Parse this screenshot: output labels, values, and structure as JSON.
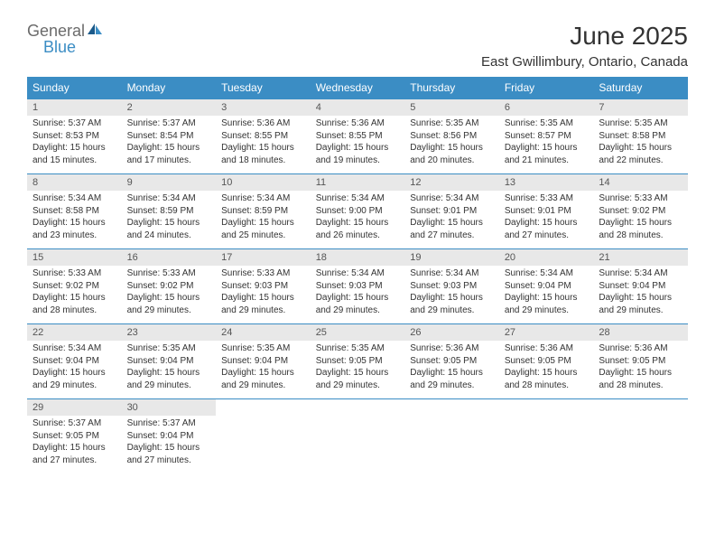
{
  "logo": {
    "text_general": "General",
    "text_blue": "Blue"
  },
  "header": {
    "month_title": "June 2025",
    "location": "East Gwillimbury, Ontario, Canada"
  },
  "colors": {
    "header_bg": "#3b8dc4",
    "header_text": "#ffffff",
    "daynum_bg": "#e8e8e8",
    "body_text": "#333333"
  },
  "day_labels": [
    "Sunday",
    "Monday",
    "Tuesday",
    "Wednesday",
    "Thursday",
    "Friday",
    "Saturday"
  ],
  "weeks": [
    [
      {
        "num": "1",
        "sunrise": "Sunrise: 5:37 AM",
        "sunset": "Sunset: 8:53 PM",
        "daylight": "Daylight: 15 hours and 15 minutes."
      },
      {
        "num": "2",
        "sunrise": "Sunrise: 5:37 AM",
        "sunset": "Sunset: 8:54 PM",
        "daylight": "Daylight: 15 hours and 17 minutes."
      },
      {
        "num": "3",
        "sunrise": "Sunrise: 5:36 AM",
        "sunset": "Sunset: 8:55 PM",
        "daylight": "Daylight: 15 hours and 18 minutes."
      },
      {
        "num": "4",
        "sunrise": "Sunrise: 5:36 AM",
        "sunset": "Sunset: 8:55 PM",
        "daylight": "Daylight: 15 hours and 19 minutes."
      },
      {
        "num": "5",
        "sunrise": "Sunrise: 5:35 AM",
        "sunset": "Sunset: 8:56 PM",
        "daylight": "Daylight: 15 hours and 20 minutes."
      },
      {
        "num": "6",
        "sunrise": "Sunrise: 5:35 AM",
        "sunset": "Sunset: 8:57 PM",
        "daylight": "Daylight: 15 hours and 21 minutes."
      },
      {
        "num": "7",
        "sunrise": "Sunrise: 5:35 AM",
        "sunset": "Sunset: 8:58 PM",
        "daylight": "Daylight: 15 hours and 22 minutes."
      }
    ],
    [
      {
        "num": "8",
        "sunrise": "Sunrise: 5:34 AM",
        "sunset": "Sunset: 8:58 PM",
        "daylight": "Daylight: 15 hours and 23 minutes."
      },
      {
        "num": "9",
        "sunrise": "Sunrise: 5:34 AM",
        "sunset": "Sunset: 8:59 PM",
        "daylight": "Daylight: 15 hours and 24 minutes."
      },
      {
        "num": "10",
        "sunrise": "Sunrise: 5:34 AM",
        "sunset": "Sunset: 8:59 PM",
        "daylight": "Daylight: 15 hours and 25 minutes."
      },
      {
        "num": "11",
        "sunrise": "Sunrise: 5:34 AM",
        "sunset": "Sunset: 9:00 PM",
        "daylight": "Daylight: 15 hours and 26 minutes."
      },
      {
        "num": "12",
        "sunrise": "Sunrise: 5:34 AM",
        "sunset": "Sunset: 9:01 PM",
        "daylight": "Daylight: 15 hours and 27 minutes."
      },
      {
        "num": "13",
        "sunrise": "Sunrise: 5:33 AM",
        "sunset": "Sunset: 9:01 PM",
        "daylight": "Daylight: 15 hours and 27 minutes."
      },
      {
        "num": "14",
        "sunrise": "Sunrise: 5:33 AM",
        "sunset": "Sunset: 9:02 PM",
        "daylight": "Daylight: 15 hours and 28 minutes."
      }
    ],
    [
      {
        "num": "15",
        "sunrise": "Sunrise: 5:33 AM",
        "sunset": "Sunset: 9:02 PM",
        "daylight": "Daylight: 15 hours and 28 minutes."
      },
      {
        "num": "16",
        "sunrise": "Sunrise: 5:33 AM",
        "sunset": "Sunset: 9:02 PM",
        "daylight": "Daylight: 15 hours and 29 minutes."
      },
      {
        "num": "17",
        "sunrise": "Sunrise: 5:33 AM",
        "sunset": "Sunset: 9:03 PM",
        "daylight": "Daylight: 15 hours and 29 minutes."
      },
      {
        "num": "18",
        "sunrise": "Sunrise: 5:34 AM",
        "sunset": "Sunset: 9:03 PM",
        "daylight": "Daylight: 15 hours and 29 minutes."
      },
      {
        "num": "19",
        "sunrise": "Sunrise: 5:34 AM",
        "sunset": "Sunset: 9:03 PM",
        "daylight": "Daylight: 15 hours and 29 minutes."
      },
      {
        "num": "20",
        "sunrise": "Sunrise: 5:34 AM",
        "sunset": "Sunset: 9:04 PM",
        "daylight": "Daylight: 15 hours and 29 minutes."
      },
      {
        "num": "21",
        "sunrise": "Sunrise: 5:34 AM",
        "sunset": "Sunset: 9:04 PM",
        "daylight": "Daylight: 15 hours and 29 minutes."
      }
    ],
    [
      {
        "num": "22",
        "sunrise": "Sunrise: 5:34 AM",
        "sunset": "Sunset: 9:04 PM",
        "daylight": "Daylight: 15 hours and 29 minutes."
      },
      {
        "num": "23",
        "sunrise": "Sunrise: 5:35 AM",
        "sunset": "Sunset: 9:04 PM",
        "daylight": "Daylight: 15 hours and 29 minutes."
      },
      {
        "num": "24",
        "sunrise": "Sunrise: 5:35 AM",
        "sunset": "Sunset: 9:04 PM",
        "daylight": "Daylight: 15 hours and 29 minutes."
      },
      {
        "num": "25",
        "sunrise": "Sunrise: 5:35 AM",
        "sunset": "Sunset: 9:05 PM",
        "daylight": "Daylight: 15 hours and 29 minutes."
      },
      {
        "num": "26",
        "sunrise": "Sunrise: 5:36 AM",
        "sunset": "Sunset: 9:05 PM",
        "daylight": "Daylight: 15 hours and 29 minutes."
      },
      {
        "num": "27",
        "sunrise": "Sunrise: 5:36 AM",
        "sunset": "Sunset: 9:05 PM",
        "daylight": "Daylight: 15 hours and 28 minutes."
      },
      {
        "num": "28",
        "sunrise": "Sunrise: 5:36 AM",
        "sunset": "Sunset: 9:05 PM",
        "daylight": "Daylight: 15 hours and 28 minutes."
      }
    ],
    [
      {
        "num": "29",
        "sunrise": "Sunrise: 5:37 AM",
        "sunset": "Sunset: 9:05 PM",
        "daylight": "Daylight: 15 hours and 27 minutes."
      },
      {
        "num": "30",
        "sunrise": "Sunrise: 5:37 AM",
        "sunset": "Sunset: 9:04 PM",
        "daylight": "Daylight: 15 hours and 27 minutes."
      },
      null,
      null,
      null,
      null,
      null
    ]
  ]
}
